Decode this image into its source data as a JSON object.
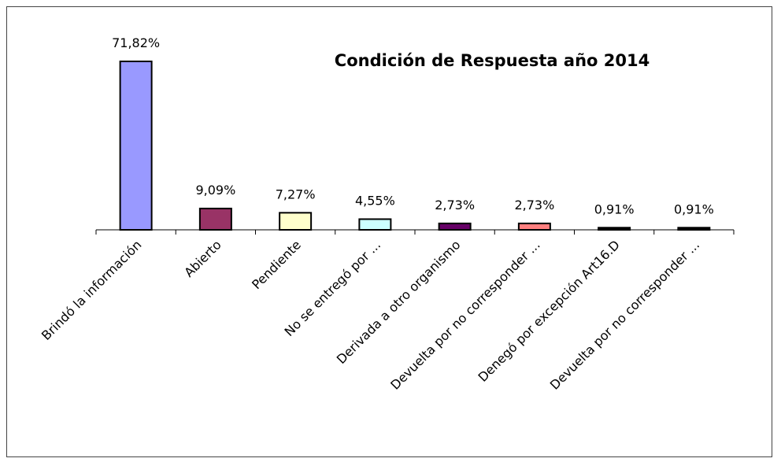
{
  "chart_data": {
    "type": "bar",
    "title": "Condición de Respuesta año 2014",
    "categories": [
      "Brindó la información",
      "Abierto",
      "Pendiente",
      "No se entregó por ...",
      "Derivada a otro organismo",
      "Devuelta por no corresponder ...",
      "Denegó por excepción  Art16.D",
      "Devuelta por no corresponder ..."
    ],
    "values": [
      71.82,
      9.09,
      7.27,
      4.55,
      2.73,
      2.73,
      0.91,
      0.91
    ],
    "value_labels": [
      "71,82%",
      "9,09%",
      "7,27%",
      "4,55%",
      "2,73%",
      "2,73%",
      "0,91%",
      "0,91%"
    ],
    "colors": [
      "#9999ff",
      "#993366",
      "#ffffcc",
      "#ccffff",
      "#660066",
      "#ff8080",
      "#000000",
      "#000000"
    ]
  }
}
